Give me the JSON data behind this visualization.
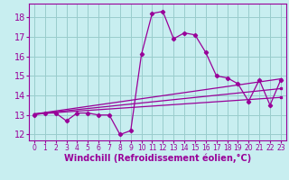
{
  "xlabel": "Windchill (Refroidissement éolien,°C)",
  "background_color": "#c8eef0",
  "line_color": "#990099",
  "grid_color": "#99cccc",
  "xlim": [
    -0.5,
    23.5
  ],
  "ylim": [
    11.7,
    18.7
  ],
  "xticks": [
    0,
    1,
    2,
    3,
    4,
    5,
    6,
    7,
    8,
    9,
    10,
    11,
    12,
    13,
    14,
    15,
    16,
    17,
    18,
    19,
    20,
    21,
    22,
    23
  ],
  "yticks": [
    12,
    13,
    14,
    15,
    16,
    17,
    18
  ],
  "main_x": [
    0,
    1,
    2,
    3,
    4,
    5,
    6,
    7,
    8,
    9,
    10,
    11,
    12,
    13,
    14,
    15,
    16,
    17,
    18,
    19,
    20,
    21,
    22,
    23
  ],
  "main_y": [
    13.0,
    13.1,
    13.1,
    12.7,
    13.1,
    13.1,
    13.0,
    13.0,
    12.0,
    12.2,
    16.1,
    18.2,
    18.3,
    16.9,
    17.2,
    17.1,
    16.2,
    15.0,
    14.9,
    14.6,
    13.7,
    14.8,
    13.5,
    14.8
  ],
  "trend1_x": [
    0,
    23
  ],
  "trend1_y": [
    13.05,
    13.9
  ],
  "trend2_x": [
    0,
    23
  ],
  "trend2_y": [
    13.05,
    14.35
  ],
  "trend3_x": [
    0,
    23
  ],
  "trend3_y": [
    13.05,
    14.85
  ],
  "fontsize_xlabel": 7,
  "fontsize_ytick": 7,
  "fontsize_xtick": 5.5
}
